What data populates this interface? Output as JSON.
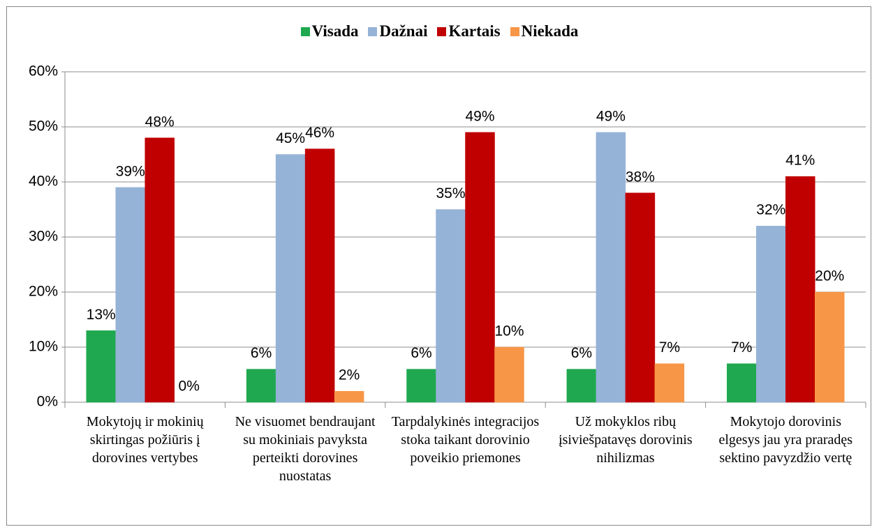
{
  "chart_data": {
    "type": "bar",
    "categories": [
      "Mokytojų ir mokinių skirtingas požiūris į dorovines vertybes",
      "Ne visuomet bendraujant su mokiniais pavyksta perteikti dorovines nuostatas",
      "Tarpdalykinės integracijos stoka taikant dorovinio poveikio priemones",
      "Už mokyklos ribų įsiviešpatavęs dorovinis nihilizmas",
      "Mokytojo dorovinis elgesys jau yra praradęs sektino pavyzdžio vertę"
    ],
    "series": [
      {
        "name": "Visada",
        "color": "#1fa84f",
        "values": [
          13,
          6,
          6,
          6,
          7
        ],
        "value_labels": [
          "13%",
          "6%",
          "6%",
          "6%",
          "7%"
        ]
      },
      {
        "name": "Dažnai",
        "color": "#95b3d7",
        "values": [
          39,
          45,
          35,
          49,
          32
        ],
        "value_labels": [
          "39%",
          "45%",
          "35%",
          "49%",
          "32%"
        ]
      },
      {
        "name": "Kartais",
        "color": "#c00000",
        "values": [
          48,
          46,
          49,
          38,
          41
        ],
        "value_labels": [
          "48%",
          "46%",
          "49%",
          "38%",
          "41%"
        ]
      },
      {
        "name": "Niekada",
        "color": "#f79646",
        "values": [
          0,
          2,
          10,
          7,
          20
        ],
        "value_labels": [
          "0%",
          "2%",
          "10%",
          "7%",
          "20%"
        ]
      }
    ],
    "ylim": [
      0,
      60
    ],
    "yticks": [
      {
        "value": 0,
        "label": "0%"
      },
      {
        "value": 10,
        "label": "10%"
      },
      {
        "value": 20,
        "label": "20%"
      },
      {
        "value": 30,
        "label": "30%"
      },
      {
        "value": 40,
        "label": "40%"
      },
      {
        "value": 50,
        "label": "50%"
      },
      {
        "value": 60,
        "label": "60%"
      }
    ],
    "grid": true,
    "legend": "top"
  }
}
